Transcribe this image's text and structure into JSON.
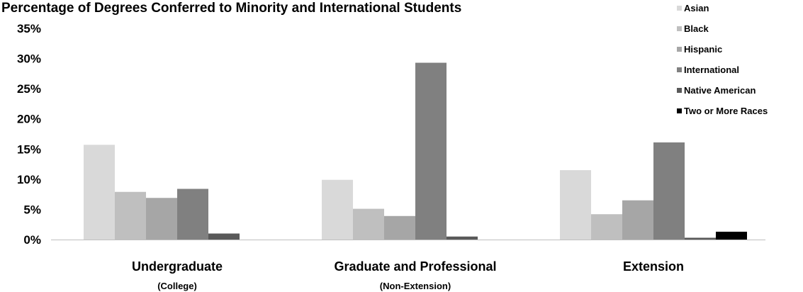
{
  "chart_data": {
    "type": "bar",
    "title": "Percentage of Degrees Conferred to Minority and International Students",
    "categories": [
      "Undergraduate",
      "Graduate and Professional",
      "Extension"
    ],
    "category_sublabels": [
      "(College)",
      "(Non-Extension)",
      ""
    ],
    "series": [
      {
        "name": "Asian",
        "color": "#d9d9d9",
        "values": [
          15.7,
          9.9,
          11.5
        ]
      },
      {
        "name": "Black",
        "color": "#bfbfbf",
        "values": [
          7.9,
          5.1,
          4.2
        ]
      },
      {
        "name": "Hispanic",
        "color": "#a6a6a6",
        "values": [
          6.9,
          3.9,
          6.5
        ]
      },
      {
        "name": "International",
        "color": "#808080",
        "values": [
          8.4,
          29.3,
          16.1
        ]
      },
      {
        "name": "Native American",
        "color": "#595959",
        "values": [
          1.0,
          0.5,
          0.3
        ]
      },
      {
        "name": "Two or More Races",
        "color": "#000000",
        "values": [
          0.0,
          0.0,
          1.3
        ]
      }
    ],
    "ylim": [
      0,
      35
    ],
    "yticks": [
      0,
      5,
      10,
      15,
      20,
      25,
      30,
      35
    ],
    "ytick_labels": [
      "0%",
      "5%",
      "10%",
      "15%",
      "20%",
      "25%",
      "30%",
      "35%"
    ],
    "xlabel": "",
    "ylabel": "",
    "grid": false,
    "legend_position": "top-right"
  }
}
